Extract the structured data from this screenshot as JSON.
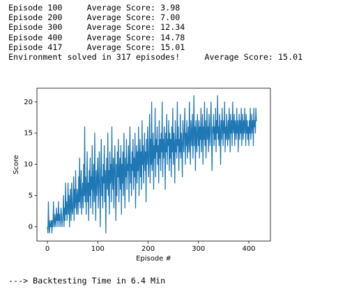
{
  "output": {
    "lines": [
      "Episode 100     Average Score: 3.98",
      "Episode 200     Average Score: 7.00",
      "Episode 300     Average Score: 12.34",
      "Episode 400     Average Score: 14.78",
      "Episode 417     Average Score: 15.01",
      "Environment solved in 317 episodes!     Average Score: 15.01"
    ]
  },
  "chart_data": {
    "type": "line",
    "xlabel": "Episode #",
    "ylabel": "Score",
    "color": "#1f77b4",
    "xlim": [
      -20.8,
      442.9
    ],
    "xticks": [
      0,
      100,
      200,
      300,
      400
    ],
    "ylim": [
      -2.3,
      22.2
    ],
    "yticks": [
      0,
      5,
      10,
      15,
      20
    ],
    "values": [
      0,
      -1,
      4,
      0,
      -1,
      1,
      0,
      0,
      1,
      -1,
      1,
      0,
      4,
      1,
      0,
      2,
      1,
      0,
      3,
      1,
      2,
      0,
      4,
      1,
      2,
      0,
      1,
      3,
      2,
      0,
      1,
      2,
      5,
      0,
      3,
      1,
      7,
      2,
      4,
      1,
      3,
      7,
      2,
      5,
      0,
      4,
      6,
      1,
      7,
      3,
      2,
      4,
      8,
      1,
      6,
      3,
      9,
      4,
      2,
      6,
      5,
      2,
      8,
      4,
      11,
      3,
      6,
      9,
      2,
      5,
      7,
      3,
      10,
      5,
      16,
      4,
      8,
      2,
      6,
      12,
      4,
      7,
      1,
      9,
      5,
      11,
      3,
      8,
      6,
      13,
      2,
      7,
      10,
      4,
      15,
      6,
      1,
      9,
      5,
      8,
      11,
      3,
      7,
      12,
      6,
      0,
      9,
      14,
      5,
      8,
      3,
      10,
      7,
      13,
      4,
      9,
      -1,
      8,
      11,
      6,
      15,
      5,
      9,
      2,
      12,
      7,
      10,
      4,
      16,
      8,
      6,
      11,
      3,
      9,
      13,
      7,
      1,
      10,
      5,
      12,
      8,
      14,
      4,
      9,
      11,
      6,
      13,
      2,
      10,
      7,
      12,
      5,
      15,
      9,
      3,
      11,
      8,
      14,
      6,
      10,
      9,
      13,
      4,
      11,
      16,
      7,
      10,
      5,
      12,
      9,
      14,
      6,
      11,
      8,
      15,
      3,
      10,
      13,
      7,
      12,
      9,
      16,
      5,
      11,
      14,
      8,
      12,
      6,
      17,
      10,
      13,
      7,
      11,
      15,
      9,
      12,
      4,
      14,
      10,
      16,
      11,
      8,
      13,
      18,
      7,
      14,
      10,
      20,
      9,
      12,
      15,
      6,
      13,
      11,
      19,
      8,
      14,
      12,
      16,
      10,
      13,
      7,
      17,
      11,
      14,
      9,
      15,
      12,
      20,
      8,
      14,
      11,
      16,
      13,
      6,
      15,
      12,
      18,
      10,
      14,
      13,
      17,
      9,
      15,
      11,
      14,
      8,
      16,
      12,
      19,
      10,
      15,
      13,
      7,
      17,
      12,
      14,
      11,
      20,
      13,
      16,
      9,
      14,
      12,
      18,
      11,
      15,
      13,
      8,
      17,
      14,
      12,
      16,
      19,
      10,
      15,
      13,
      17,
      11,
      14,
      16,
      12,
      20,
      14,
      10,
      17,
      15,
      13,
      18,
      11,
      15,
      21,
      13,
      16,
      9,
      17,
      14,
      12,
      18,
      15,
      13,
      17,
      11,
      16,
      14,
      19,
      12,
      15,
      18,
      10,
      16,
      14,
      20,
      13,
      17,
      11,
      15,
      19,
      14,
      16,
      12,
      18,
      15,
      13,
      17,
      20,
      14,
      9,
      16,
      15,
      18,
      13,
      16,
      14,
      19,
      12,
      17,
      15,
      21,
      14,
      16,
      13,
      18,
      15,
      10,
      17,
      14,
      19,
      16,
      13,
      17,
      15,
      20,
      12,
      16,
      14,
      18,
      15,
      13,
      17,
      14,
      19,
      16,
      12,
      18,
      15,
      17,
      13,
      20,
      16,
      15,
      18,
      13,
      17,
      16,
      14,
      19,
      15,
      17,
      12,
      16,
      18,
      14,
      17,
      15,
      19,
      13,
      16,
      18,
      14,
      17,
      15,
      19,
      16,
      13,
      18,
      15,
      17,
      14,
      16,
      13,
      17,
      15,
      19,
      14,
      16,
      18,
      15,
      17,
      13,
      19,
      16,
      17,
      15,
      19,
      17,
      17
    ]
  },
  "footer": "---> Backtesting Time in 6.4 Min"
}
